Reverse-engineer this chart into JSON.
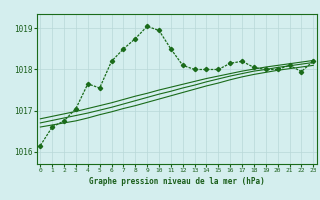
{
  "title": "Graphe pression niveau de la mer (hPa)",
  "background_color": "#d4eeee",
  "grid_color": "#b8d8d8",
  "line_color": "#1a6b1a",
  "ylim": [
    1015.7,
    1019.35
  ],
  "xlim": [
    -0.3,
    23.3
  ],
  "yticks": [
    1016,
    1017,
    1018,
    1019
  ],
  "xticks": [
    0,
    1,
    2,
    3,
    4,
    5,
    6,
    7,
    8,
    9,
    10,
    11,
    12,
    13,
    14,
    15,
    16,
    17,
    18,
    19,
    20,
    21,
    22,
    23
  ],
  "font_color": "#1a5e1a",
  "series_main": [
    1016.15,
    1016.6,
    1016.75,
    1017.05,
    1017.65,
    1017.55,
    1018.2,
    1018.5,
    1018.75,
    1019.05,
    1018.95,
    1018.5,
    1018.1,
    1018.0,
    1018.0,
    1018.0,
    1018.15,
    1018.2,
    1018.05,
    1018.0,
    1018.0,
    1018.1,
    1017.95,
    1018.2
  ],
  "series_linear1": [
    1016.6,
    1016.65,
    1016.7,
    1016.75,
    1016.82,
    1016.9,
    1016.97,
    1017.05,
    1017.12,
    1017.2,
    1017.28,
    1017.36,
    1017.44,
    1017.52,
    1017.6,
    1017.67,
    1017.75,
    1017.82,
    1017.88,
    1017.93,
    1017.98,
    1018.02,
    1018.06,
    1018.1
  ],
  "series_linear2": [
    1016.7,
    1016.76,
    1016.82,
    1016.88,
    1016.94,
    1017.01,
    1017.08,
    1017.16,
    1017.24,
    1017.32,
    1017.4,
    1017.47,
    1017.55,
    1017.62,
    1017.7,
    1017.77,
    1017.84,
    1017.9,
    1017.96,
    1018.0,
    1018.05,
    1018.09,
    1018.13,
    1018.17
  ],
  "series_linear3": [
    1016.8,
    1016.86,
    1016.92,
    1016.98,
    1017.05,
    1017.12,
    1017.19,
    1017.27,
    1017.35,
    1017.42,
    1017.5,
    1017.57,
    1017.64,
    1017.71,
    1017.78,
    1017.84,
    1017.9,
    1017.96,
    1018.01,
    1018.06,
    1018.1,
    1018.14,
    1018.18,
    1018.22
  ]
}
